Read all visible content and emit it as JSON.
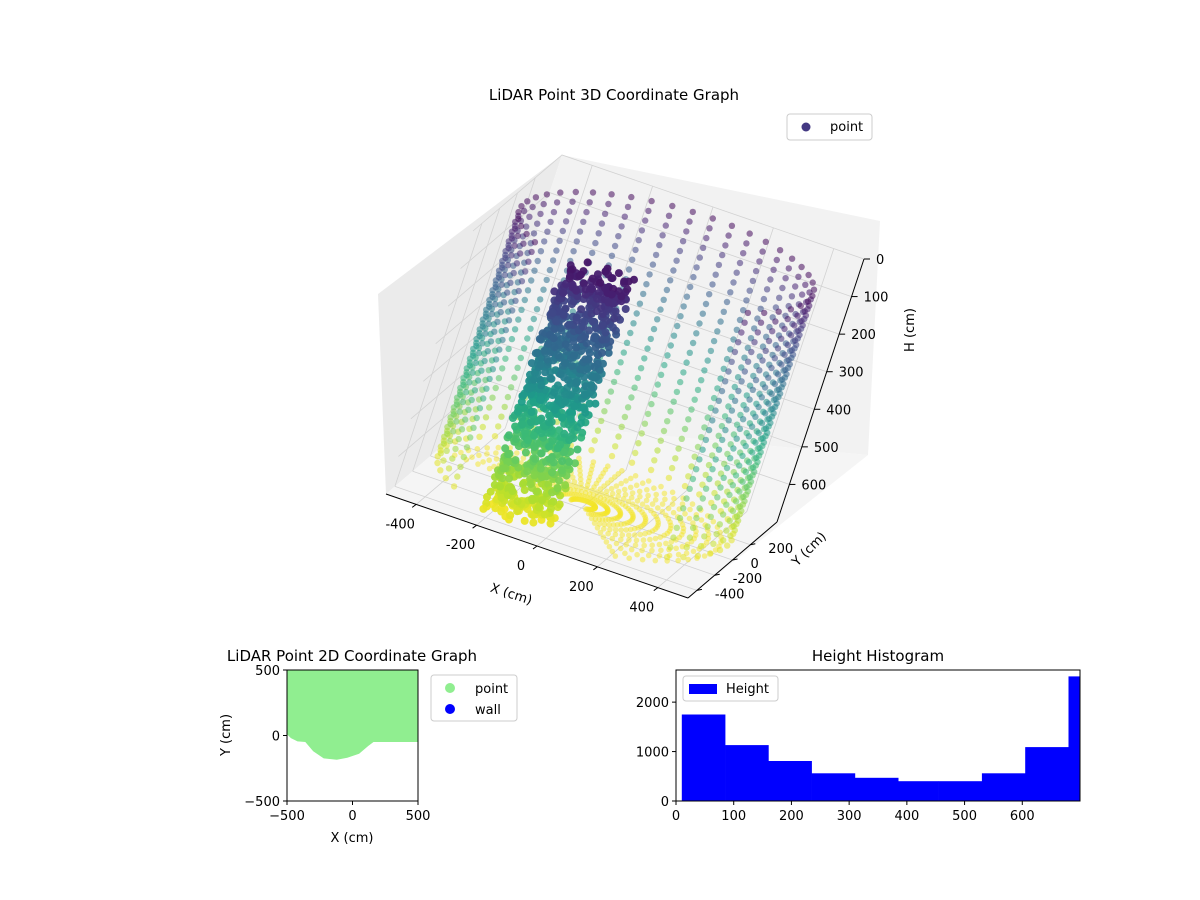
{
  "chart_data": [
    {
      "type": "scatter",
      "projection": "3d",
      "title": "LiDAR Point 3D Coordinate Graph",
      "xlabel": "X (cm)",
      "ylabel": "Y (cm)",
      "zlabel": "H (cm)",
      "xlim": [
        -500,
        500
      ],
      "ylim": [
        -500,
        500
      ],
      "zlim": [
        0,
        700
      ],
      "zaxis_inverted": true,
      "x_ticks": [
        -400,
        -200,
        0,
        200,
        400
      ],
      "y_ticks": [
        -400,
        -200,
        0,
        200
      ],
      "z_ticks": [
        0,
        100,
        200,
        300,
        400,
        500,
        600
      ],
      "z_tick_labels": [
        "0",
        "100",
        "200",
        "300",
        "400",
        "500",
        "600"
      ],
      "colormap": "viridis",
      "grid": true,
      "legend": {
        "placement": "upper-right",
        "entries": [
          {
            "label": "point",
            "color": "#443983"
          }
        ]
      },
      "series": [
        {
          "name": "point",
          "structure": "cylindrical scan of room walls, radius ~470 cm, height 0-700 cm, plus dense blob at x -220 to 0, y -420 to -250"
        }
      ]
    },
    {
      "type": "scatter",
      "title": "LiDAR Point 2D Coordinate Graph",
      "xlabel": "X (cm)",
      "ylabel": "Y (cm)",
      "xlim": [
        -500,
        500
      ],
      "ylim": [
        -500,
        500
      ],
      "x_ticks": [
        -500,
        0,
        500
      ],
      "y_ticks": [
        -500,
        0,
        500
      ],
      "legend": {
        "placement": "outside-right",
        "entries": [
          {
            "label": "point",
            "color": "#90ee90"
          },
          {
            "label": "wall",
            "color": "#0000ff"
          }
        ]
      },
      "point_region_outline": [
        [
          -500,
          500
        ],
        [
          500,
          500
        ],
        [
          500,
          -50
        ],
        [
          160,
          -50
        ],
        [
          120,
          -80
        ],
        [
          50,
          -140
        ],
        [
          -40,
          -170
        ],
        [
          -120,
          -185
        ],
        [
          -220,
          -175
        ],
        [
          -300,
          -120
        ],
        [
          -360,
          -50
        ],
        [
          -420,
          -45
        ],
        [
          -470,
          -20
        ],
        [
          -500,
          10
        ]
      ]
    },
    {
      "type": "bar",
      "subtype": "histogram",
      "title": "Height Histogram",
      "xlim": [
        0,
        700
      ],
      "ylim": [
        0,
        2650
      ],
      "x_ticks": [
        0,
        100,
        200,
        300,
        400,
        500,
        600
      ],
      "y_ticks": [
        0,
        1000,
        2000
      ],
      "legend": {
        "placement": "upper-left",
        "entries": [
          {
            "label": "Height",
            "color": "#0000ff"
          }
        ]
      },
      "series": [
        {
          "name": "Height",
          "color": "#0000ff",
          "bin_edges": [
            10,
            85,
            160,
            235,
            310,
            385,
            455,
            530,
            605,
            680,
            700
          ],
          "values": [
            1750,
            1130,
            810,
            560,
            470,
            400,
            400,
            560,
            1090,
            2520
          ]
        }
      ]
    }
  ]
}
